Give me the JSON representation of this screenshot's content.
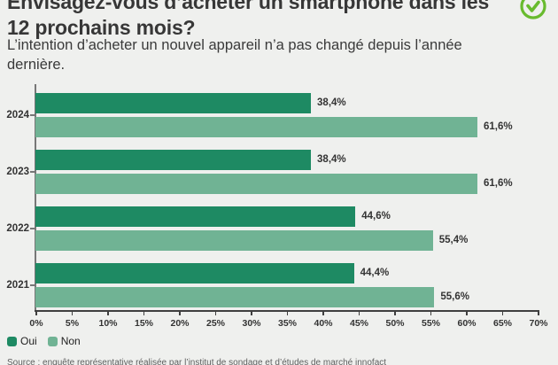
{
  "header": {
    "title_line1": "Envisagez-vous d’acheter un smartphone dans les",
    "title_line2": "12 prochains mois?",
    "subtitle": "L’intention d’acheter un nouvel appareil n’a pas changé depuis l’année dernière.",
    "badge_icon": "green-check-circle-icon"
  },
  "colors": {
    "oui": "#1e8a63",
    "non": "#70b394",
    "check_icon": "#68bb2e",
    "background": "#eff0ee",
    "axis": "#3f3f3f",
    "text": "#3a3a3a"
  },
  "chart_data": {
    "type": "bar",
    "orientation": "horizontal",
    "categories": [
      "2024",
      "2023",
      "2022",
      "2021"
    ],
    "series": [
      {
        "name": "Oui",
        "color": "#1e8a63",
        "values": [
          38.4,
          38.4,
          44.6,
          44.4
        ],
        "labels": [
          "38,4%",
          "38,4%",
          "44,6%",
          "44,4%"
        ]
      },
      {
        "name": "Non",
        "color": "#70b394",
        "values": [
          61.6,
          61.6,
          55.4,
          55.6
        ],
        "labels": [
          "61,6%",
          "61,6%",
          "55,4%",
          "55,6%"
        ]
      }
    ],
    "xlim": [
      0,
      70
    ],
    "x_tick_values": [
      0,
      5,
      10,
      15,
      20,
      25,
      30,
      35,
      40,
      45,
      50,
      55,
      60,
      65,
      70
    ],
    "x_ticks": [
      "0%",
      "5%",
      "10%",
      "15%",
      "20%",
      "25%",
      "30%",
      "35%",
      "40%",
      "45%",
      "50%",
      "55%",
      "60%",
      "65%",
      "70%"
    ],
    "grid": false,
    "legend": [
      "Oui",
      "Non"
    ],
    "legend_position": "bottom-left"
  },
  "footer": {
    "source": "Source : enquête représentative réalisée par l’institut de sondage et d’études de marché innofact"
  }
}
